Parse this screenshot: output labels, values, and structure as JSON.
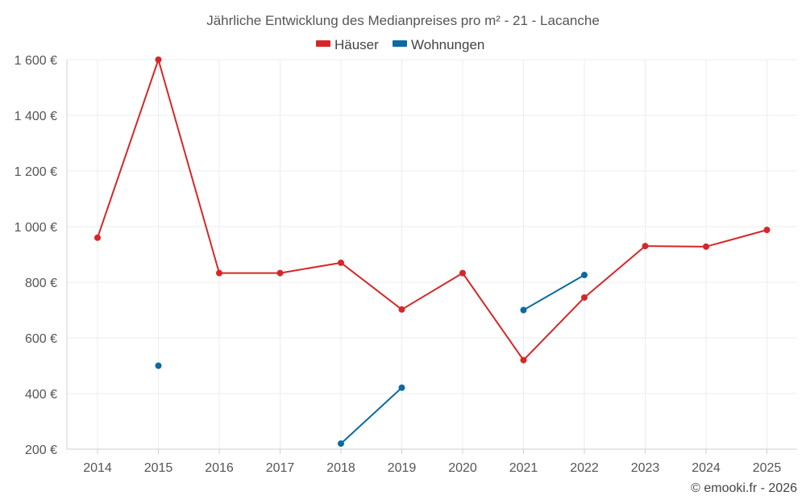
{
  "chart_data": {
    "type": "line",
    "title": "Jährliche Entwicklung des Medianpreises pro m² - 21 - Lacanche",
    "categories": [
      "2014",
      "2015",
      "2016",
      "2017",
      "2018",
      "2019",
      "2020",
      "2021",
      "2022",
      "2023",
      "2024",
      "2025"
    ],
    "ylim": [
      200,
      1600
    ],
    "yticks": [
      200,
      400,
      600,
      800,
      1000,
      1200,
      1400,
      1600
    ],
    "ytick_labels": [
      "200 €",
      "400 €",
      "600 €",
      "800 €",
      "1 000 €",
      "1 200 €",
      "1 400 €",
      "1 600 €"
    ],
    "grid": true,
    "legend_position": "top-center",
    "series": [
      {
        "name": "Häuser",
        "color": "#d62728",
        "values": [
          960,
          1600,
          833,
          833,
          870,
          702,
          833,
          520,
          745,
          930,
          928,
          988
        ]
      },
      {
        "name": "Wohnungen",
        "color": "#0b6aa2",
        "values": [
          null,
          500,
          null,
          null,
          220,
          421,
          null,
          700,
          826,
          null,
          null,
          null
        ]
      }
    ],
    "credit": "© emooki.fr - 2026"
  }
}
